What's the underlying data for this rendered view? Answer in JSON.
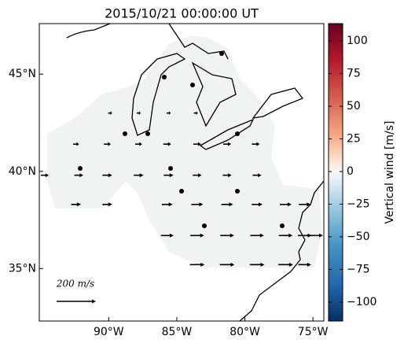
{
  "title": "2015/10/21 00:00:00 UT",
  "map": {
    "xlim": [
      -95.1,
      -74.2
    ],
    "ylim": [
      32.3,
      47.6
    ],
    "xticks": [
      {
        "value": -90,
        "label": "90°W"
      },
      {
        "value": -85,
        "label": "85°W"
      },
      {
        "value": -80,
        "label": "80°W"
      },
      {
        "value": -75,
        "label": "75°W"
      }
    ],
    "yticks": [
      {
        "value": 35,
        "label": "35°N"
      },
      {
        "value": 40,
        "label": "40°N"
      },
      {
        "value": 45,
        "label": "45°N"
      }
    ],
    "vectors": [
      {
        "lon": -89.9,
        "lat": 43.0,
        "u": 20
      },
      {
        "lon": -87.8,
        "lat": 43.0,
        "u": 20
      },
      {
        "lon": -85.6,
        "lat": 43.0,
        "u": 20
      },
      {
        "lon": -83.6,
        "lat": 43.0,
        "u": 20
      },
      {
        "lon": -92.4,
        "lat": 41.4,
        "u": 30
      },
      {
        "lon": -90.1,
        "lat": 41.4,
        "u": 35
      },
      {
        "lon": -87.8,
        "lat": 41.4,
        "u": 35
      },
      {
        "lon": -85.7,
        "lat": 41.4,
        "u": 40
      },
      {
        "lon": -83.5,
        "lat": 41.4,
        "u": 40
      },
      {
        "lon": -81.3,
        "lat": 41.4,
        "u": 40
      },
      {
        "lon": -79.2,
        "lat": 41.4,
        "u": 40
      },
      {
        "lon": -94.7,
        "lat": 39.8,
        "u": 40
      },
      {
        "lon": -92.2,
        "lat": 39.8,
        "u": 45
      },
      {
        "lon": -90.1,
        "lat": 39.8,
        "u": 50
      },
      {
        "lon": -87.8,
        "lat": 39.8,
        "u": 50
      },
      {
        "lon": -85.6,
        "lat": 39.8,
        "u": 50
      },
      {
        "lon": -83.5,
        "lat": 39.8,
        "u": 45
      },
      {
        "lon": -81.3,
        "lat": 39.8,
        "u": 45
      },
      {
        "lon": -79.1,
        "lat": 39.8,
        "u": 45
      },
      {
        "lon": -92.4,
        "lat": 38.3,
        "u": 50
      },
      {
        "lon": -90.1,
        "lat": 38.3,
        "u": 50
      },
      {
        "lon": -85.7,
        "lat": 38.3,
        "u": 55
      },
      {
        "lon": -83.5,
        "lat": 38.3,
        "u": 60
      },
      {
        "lon": -81.3,
        "lat": 38.3,
        "u": 60
      },
      {
        "lon": -79.1,
        "lat": 38.3,
        "u": 55
      },
      {
        "lon": -77.0,
        "lat": 38.3,
        "u": 60
      },
      {
        "lon": -75.6,
        "lat": 38.3,
        "u": 60
      },
      {
        "lon": -85.7,
        "lat": 36.7,
        "u": 65
      },
      {
        "lon": -83.5,
        "lat": 36.7,
        "u": 70
      },
      {
        "lon": -81.3,
        "lat": 36.7,
        "u": 70
      },
      {
        "lon": -79.1,
        "lat": 36.7,
        "u": 70
      },
      {
        "lon": -77.0,
        "lat": 36.7,
        "u": 70
      },
      {
        "lon": -75.6,
        "lat": 36.7,
        "u": 70
      },
      {
        "lon": -74.8,
        "lat": 36.7,
        "u": 75
      },
      {
        "lon": -83.5,
        "lat": 35.2,
        "u": 75
      },
      {
        "lon": -81.3,
        "lat": 35.2,
        "u": 75
      },
      {
        "lon": -79.1,
        "lat": 35.2,
        "u": 75
      },
      {
        "lon": -77.0,
        "lat": 35.2,
        "u": 75
      },
      {
        "lon": -75.6,
        "lat": 35.2,
        "u": 65
      }
    ]
  },
  "scale": {
    "label": "200 m/s",
    "value": 200
  },
  "colorbar": {
    "label": "Vertical wind [m/s]",
    "lim": [
      -114.5,
      113.3
    ],
    "ticks": [
      {
        "value": -100,
        "label": "−100"
      },
      {
        "value": -75,
        "label": "−75"
      },
      {
        "value": -50,
        "label": "−50"
      },
      {
        "value": -25,
        "label": "−25"
      },
      0,
      25,
      50,
      75,
      100
    ]
  }
}
